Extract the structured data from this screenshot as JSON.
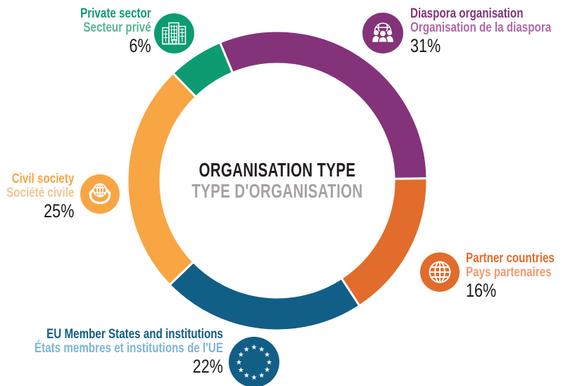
{
  "center": {
    "title_en": "ORGANISATION TYPE",
    "title_fr": "TYPE D'ORGANISATION",
    "title_color": "#231f20",
    "subtitle_color": "#a6a2a0"
  },
  "chart_data": {
    "type": "pie",
    "variant": "donut",
    "title": "ORGANISATION TYPE / TYPE D'ORGANISATION",
    "legend_position": "around",
    "center": [
      394,
      257
    ],
    "outer_radius": 213,
    "inner_radius": 166,
    "start_angle": 337.5,
    "direction": "clockwise",
    "percent_color": "#1a1a18",
    "categories": [
      "Diaspora organisation",
      "Partner countries",
      "EU Member States and institutions",
      "Civil society",
      "Private sector"
    ],
    "values": [
      31,
      16,
      22,
      25,
      6
    ],
    "segments": [
      {
        "id": "diaspora-organisation",
        "label_en": "Diaspora organisation",
        "label_fr": "Organisation de la diaspora",
        "value": 31,
        "percent": "31%",
        "color": "#84337a",
        "subtitle_color": "#b168a7",
        "icon": "people-globe-icon"
      },
      {
        "id": "partner-countries",
        "label_en": "Partner countries",
        "label_fr": "Pays partenaires",
        "value": 16,
        "percent": "16%",
        "color": "#e16c2b",
        "subtitle_color": "#f09b70",
        "icon": "globe-icon"
      },
      {
        "id": "eu-member-states",
        "label_en": "EU Member States and institutions",
        "label_fr": "États membres et institutions de l'UE",
        "value": 22,
        "percent": "22%",
        "color": "#115e86",
        "subtitle_color": "#7fb5d5",
        "icon": "eu-stars-icon"
      },
      {
        "id": "civil-society",
        "label_en": "Civil society",
        "label_fr": "Société civile",
        "value": 25,
        "percent": "25%",
        "color": "#f8a544",
        "subtitle_color": "#f0c692",
        "icon": "hands-globe-icon"
      },
      {
        "id": "private-sector",
        "label_en": "Private sector",
        "label_fr": "Secteur privé",
        "value": 6,
        "percent": "6%",
        "color": "#0d9b72",
        "subtitle_color": "#56b795",
        "icon": "buildings-icon"
      }
    ]
  }
}
